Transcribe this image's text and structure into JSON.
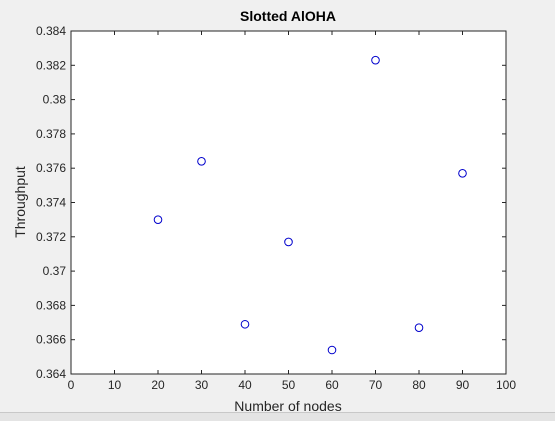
{
  "chart_data": {
    "type": "scatter",
    "title": "Slotted AlOHA",
    "xlabel": "Number of nodes",
    "ylabel": "Throughput",
    "xlim": [
      0,
      100
    ],
    "ylim": [
      0.364,
      0.384
    ],
    "grid": false,
    "x_ticks": [
      "0",
      "10",
      "20",
      "30",
      "40",
      "50",
      "60",
      "70",
      "80",
      "90",
      "100"
    ],
    "y_ticks": [
      "0.364",
      "0.366",
      "0.368",
      "0.37",
      "0.372",
      "0.374",
      "0.376",
      "0.378",
      "0.38",
      "0.382",
      "0.384"
    ],
    "marker": "circle",
    "marker_color": "#0000cc",
    "series": [
      {
        "x": [
          20,
          30,
          40,
          50,
          60,
          70,
          80,
          90
        ],
        "y": [
          0.373,
          0.3764,
          0.3669,
          0.3717,
          0.3654,
          0.3823,
          0.3667,
          0.3757
        ]
      }
    ]
  }
}
